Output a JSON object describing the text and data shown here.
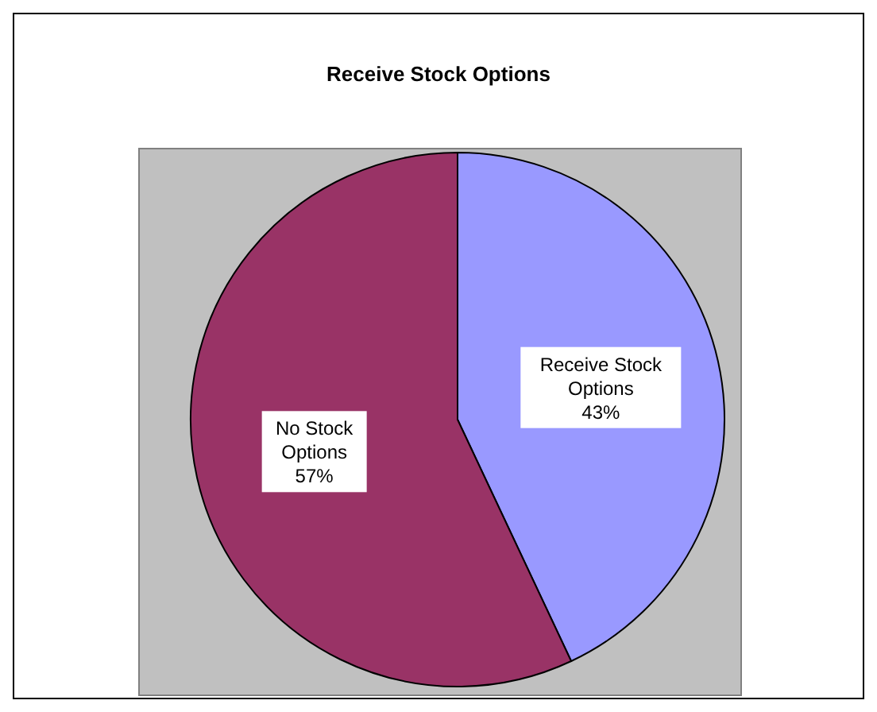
{
  "chart_data": {
    "type": "pie",
    "title": "Receive Stock Options",
    "categories": [
      "Receive Stock Options",
      "No Stock Options"
    ],
    "values": [
      43,
      57
    ],
    "value_labels": [
      "43%",
      "57%"
    ],
    "colors": [
      "#9999ff",
      "#993366"
    ]
  }
}
